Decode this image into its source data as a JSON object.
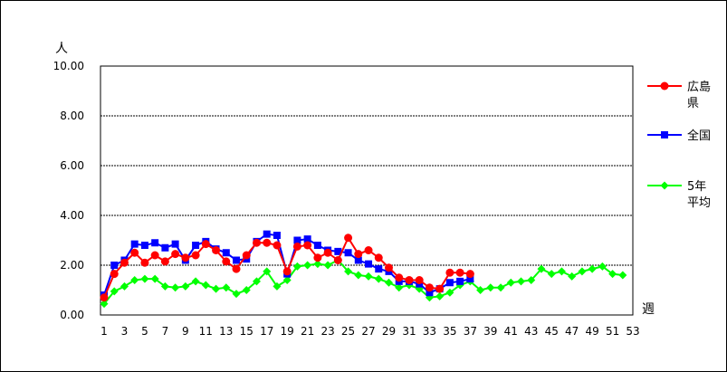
{
  "chart_data": {
    "type": "line",
    "title": "",
    "ylabel": "人",
    "xlabel": "週",
    "ylim": [
      0,
      10
    ],
    "yticks": [
      "0.00",
      "2.00",
      "4.00",
      "6.00",
      "8.00",
      "10.00"
    ],
    "xlim": [
      1,
      53
    ],
    "xticks": [
      "1",
      "3",
      "5",
      "7",
      "9",
      "11",
      "13",
      "15",
      "17",
      "19",
      "21",
      "23",
      "25",
      "27",
      "29",
      "31",
      "33",
      "35",
      "37",
      "39",
      "41",
      "43",
      "45",
      "47",
      "49",
      "51",
      "53"
    ],
    "grid": true,
    "legend_position": "right",
    "series": [
      {
        "name": "広島県",
        "legend_lines": [
          "広島",
          "県"
        ],
        "color": "#ff0000",
        "marker": "circle",
        "x": [
          1,
          2,
          3,
          4,
          5,
          6,
          7,
          8,
          9,
          10,
          11,
          12,
          13,
          14,
          15,
          16,
          17,
          18,
          19,
          20,
          21,
          22,
          23,
          24,
          25,
          26,
          27,
          28,
          29,
          30,
          31,
          32,
          33,
          34,
          35,
          36,
          37
        ],
        "values": [
          0.7,
          1.65,
          2.1,
          2.5,
          2.1,
          2.4,
          2.15,
          2.45,
          2.3,
          2.4,
          2.85,
          2.6,
          2.15,
          1.85,
          2.4,
          2.9,
          2.9,
          2.8,
          1.75,
          2.75,
          2.8,
          2.3,
          2.5,
          2.2,
          3.1,
          2.45,
          2.6,
          2.3,
          1.9,
          1.5,
          1.4,
          1.4,
          1.1,
          1.05,
          1.7,
          1.7,
          1.65
        ]
      },
      {
        "name": "全国",
        "legend_lines": [
          "全国"
        ],
        "color": "#0000ff",
        "marker": "square",
        "x": [
          1,
          2,
          3,
          4,
          5,
          6,
          7,
          8,
          9,
          10,
          11,
          12,
          13,
          14,
          15,
          16,
          17,
          18,
          19,
          20,
          21,
          22,
          23,
          24,
          25,
          26,
          27,
          28,
          29,
          30,
          31,
          32,
          33,
          34,
          35,
          36,
          37
        ],
        "values": [
          0.8,
          2.0,
          2.2,
          2.85,
          2.8,
          2.9,
          2.7,
          2.85,
          2.2,
          2.8,
          2.95,
          2.65,
          2.5,
          2.2,
          2.25,
          2.95,
          3.25,
          3.2,
          1.65,
          3.0,
          3.05,
          2.8,
          2.6,
          2.55,
          2.5,
          2.2,
          2.05,
          1.85,
          1.75,
          1.35,
          1.35,
          1.25,
          0.9,
          1.05,
          1.3,
          1.35,
          1.45
        ]
      },
      {
        "name": "5年平均",
        "legend_lines": [
          "5年",
          "平均"
        ],
        "color": "#00ff00",
        "marker": "diamond",
        "x": [
          1,
          2,
          3,
          4,
          5,
          6,
          7,
          8,
          9,
          10,
          11,
          12,
          13,
          14,
          15,
          16,
          17,
          18,
          19,
          20,
          21,
          22,
          23,
          24,
          25,
          26,
          27,
          28,
          29,
          30,
          31,
          32,
          33,
          34,
          35,
          36,
          37,
          38,
          39,
          40,
          41,
          42,
          43,
          44,
          45,
          46,
          47,
          48,
          49,
          50,
          51,
          52
        ],
        "values": [
          0.45,
          0.95,
          1.15,
          1.4,
          1.45,
          1.45,
          1.15,
          1.1,
          1.15,
          1.35,
          1.2,
          1.05,
          1.1,
          0.85,
          1.0,
          1.35,
          1.75,
          1.15,
          1.4,
          1.95,
          2.0,
          2.05,
          2.0,
          2.2,
          1.75,
          1.6,
          1.55,
          1.45,
          1.3,
          1.1,
          1.2,
          1.05,
          0.7,
          0.75,
          0.9,
          1.2,
          1.35,
          1.0,
          1.1,
          1.1,
          1.3,
          1.35,
          1.4,
          1.85,
          1.65,
          1.75,
          1.55,
          1.75,
          1.85,
          1.95,
          1.65,
          1.6
        ]
      }
    ]
  }
}
